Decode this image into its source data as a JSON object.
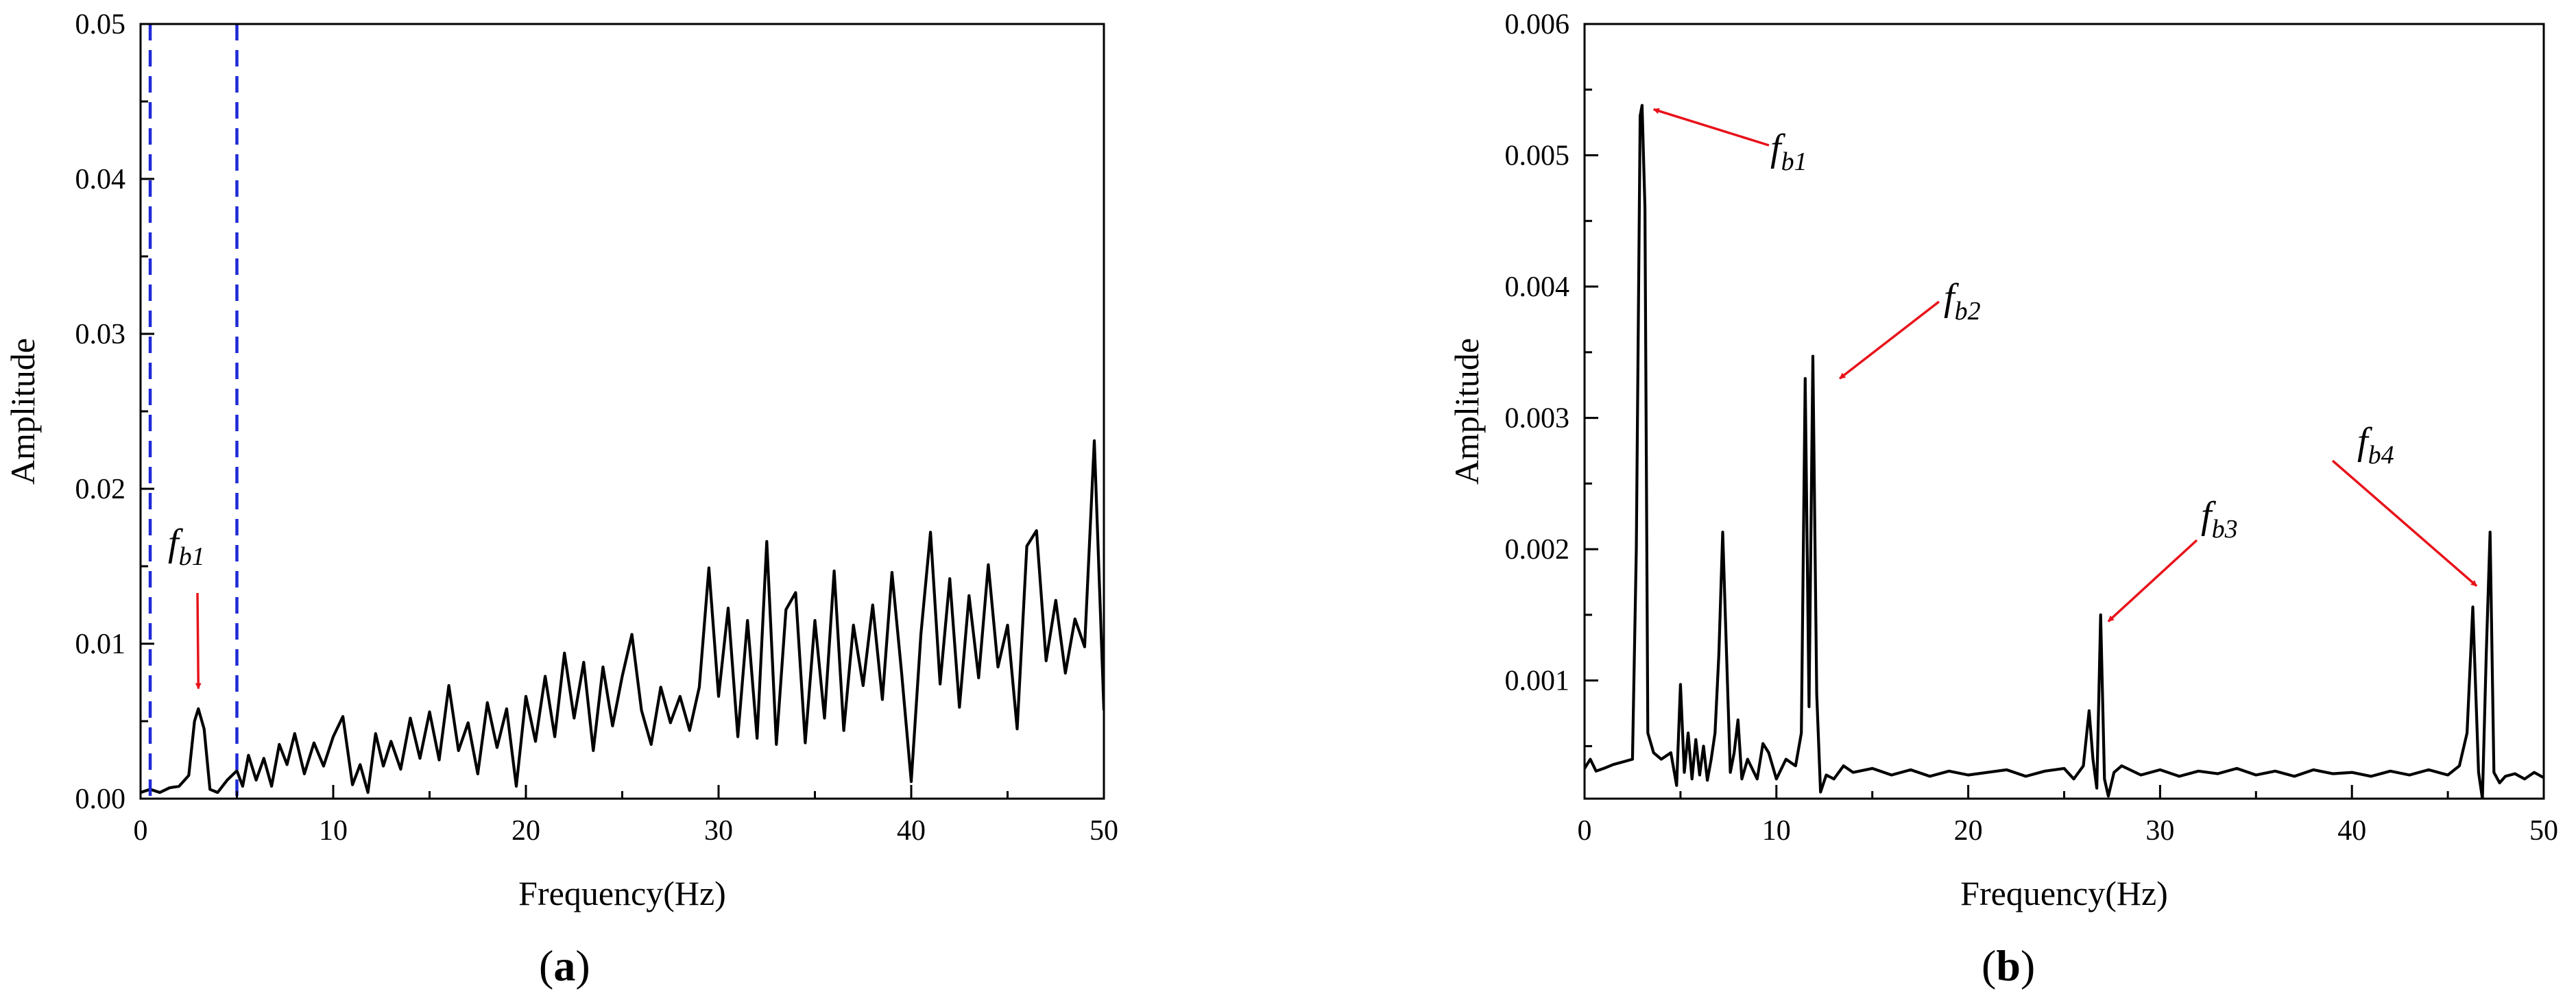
{
  "panels": {
    "a": {
      "letter": "a"
    },
    "b": {
      "letter": "b"
    }
  },
  "chart_data": [
    {
      "id": "a",
      "type": "line",
      "xlabel": "Frequency(Hz)",
      "ylabel": "Amplitude",
      "xlim": [
        0,
        50
      ],
      "ylim": [
        0,
        0.05
      ],
      "xticks": [
        0,
        10,
        20,
        30,
        40,
        50
      ],
      "xtick_labels": [
        "0",
        "10",
        "20",
        "30",
        "40",
        "50"
      ],
      "yticks": [
        0,
        0.01,
        0.02,
        0.03,
        0.04,
        0.05
      ],
      "ytick_labels": [
        "0.00",
        "0.01",
        "0.02",
        "0.03",
        "0.04",
        "0.05"
      ],
      "reference_lines": [
        {
          "x": 0.5,
          "style": "dashed",
          "color": "#1f2ad6"
        },
        {
          "x": 5,
          "style": "dashed",
          "color": "#1f2ad6"
        }
      ],
      "annotations": [
        {
          "label": "f",
          "sub": "b1",
          "arrow_to": [
            3.0,
            0.0071
          ]
        }
      ],
      "series": [
        {
          "color": "#000000",
          "points": [
            [
              0,
              0.0004
            ],
            [
              0.5,
              0.0006
            ],
            [
              1,
              0.0004
            ],
            [
              1.5,
              0.0007
            ],
            [
              2,
              0.0008
            ],
            [
              2.5,
              0.0015
            ],
            [
              2.8,
              0.005
            ],
            [
              3,
              0.0058
            ],
            [
              3.3,
              0.0045
            ],
            [
              3.6,
              0.0006
            ],
            [
              4,
              0.0004
            ],
            [
              4.5,
              0.0012
            ],
            [
              5,
              0.0018
            ],
            [
              5.3,
              0.0008
            ],
            [
              5.6,
              0.0028
            ],
            [
              6,
              0.0012
            ],
            [
              6.4,
              0.0026
            ],
            [
              6.8,
              0.0008
            ],
            [
              7.2,
              0.0035
            ],
            [
              7.6,
              0.0022
            ],
            [
              8,
              0.0042
            ],
            [
              8.5,
              0.0016
            ],
            [
              9,
              0.0036
            ],
            [
              9.5,
              0.0021
            ],
            [
              10,
              0.004
            ],
            [
              10.5,
              0.0053
            ],
            [
              11,
              0.0009
            ],
            [
              11.4,
              0.0022
            ],
            [
              11.8,
              0.0004
            ],
            [
              12.2,
              0.0042
            ],
            [
              12.6,
              0.0021
            ],
            [
              13,
              0.0037
            ],
            [
              13.5,
              0.0019
            ],
            [
              14,
              0.0052
            ],
            [
              14.5,
              0.0026
            ],
            [
              15,
              0.0056
            ],
            [
              15.5,
              0.0025
            ],
            [
              16,
              0.0073
            ],
            [
              16.5,
              0.0031
            ],
            [
              17,
              0.0049
            ],
            [
              17.5,
              0.0016
            ],
            [
              18,
              0.0062
            ],
            [
              18.5,
              0.0033
            ],
            [
              19,
              0.0058
            ],
            [
              19.5,
              0.0008
            ],
            [
              20,
              0.0066
            ],
            [
              20.5,
              0.0037
            ],
            [
              21,
              0.0079
            ],
            [
              21.5,
              0.004
            ],
            [
              22,
              0.0094
            ],
            [
              22.5,
              0.0052
            ],
            [
              23,
              0.0088
            ],
            [
              23.5,
              0.0031
            ],
            [
              24,
              0.0085
            ],
            [
              24.5,
              0.0047
            ],
            [
              25,
              0.0079
            ],
            [
              25.5,
              0.0106
            ],
            [
              26,
              0.0057
            ],
            [
              26.5,
              0.0035
            ],
            [
              27,
              0.0072
            ],
            [
              27.5,
              0.0049
            ],
            [
              28,
              0.0066
            ],
            [
              28.5,
              0.0044
            ],
            [
              29,
              0.0072
            ],
            [
              29.5,
              0.0149
            ],
            [
              30,
              0.0066
            ],
            [
              30.5,
              0.0123
            ],
            [
              31,
              0.004
            ],
            [
              31.5,
              0.0115
            ],
            [
              32,
              0.0039
            ],
            [
              32.5,
              0.0166
            ],
            [
              33,
              0.0035
            ],
            [
              33.5,
              0.0122
            ],
            [
              34,
              0.0133
            ],
            [
              34.5,
              0.0036
            ],
            [
              35,
              0.0115
            ],
            [
              35.5,
              0.0052
            ],
            [
              36,
              0.0147
            ],
            [
              36.5,
              0.0044
            ],
            [
              37,
              0.0112
            ],
            [
              37.5,
              0.0073
            ],
            [
              38,
              0.0125
            ],
            [
              38.5,
              0.0064
            ],
            [
              39,
              0.0146
            ],
            [
              39.5,
              0.0081
            ],
            [
              40,
              0.0011
            ],
            [
              40.5,
              0.0106
            ],
            [
              41,
              0.0172
            ],
            [
              41.5,
              0.0074
            ],
            [
              42,
              0.0142
            ],
            [
              42.5,
              0.0059
            ],
            [
              43,
              0.0131
            ],
            [
              43.5,
              0.0078
            ],
            [
              44,
              0.0151
            ],
            [
              44.5,
              0.0085
            ],
            [
              45,
              0.0112
            ],
            [
              45.5,
              0.0045
            ],
            [
              46,
              0.0163
            ],
            [
              46.5,
              0.0173
            ],
            [
              47,
              0.0089
            ],
            [
              47.5,
              0.0128
            ],
            [
              48,
              0.0081
            ],
            [
              48.5,
              0.0116
            ],
            [
              49,
              0.0098
            ],
            [
              49.5,
              0.0231
            ],
            [
              50,
              0.0057
            ]
          ]
        }
      ]
    },
    {
      "id": "b",
      "type": "line",
      "xlabel": "Frequency(Hz)",
      "ylabel": "Amplitude",
      "xlim": [
        0,
        50
      ],
      "ylim": [
        0.0001,
        0.006
      ],
      "xticks": [
        0,
        10,
        20,
        30,
        40,
        50
      ],
      "xtick_labels": [
        "0",
        "10",
        "20",
        "30",
        "40",
        "50"
      ],
      "yticks": [
        0.001,
        0.002,
        0.003,
        0.004,
        0.005,
        0.006
      ],
      "ytick_labels": [
        "0.001",
        "0.002",
        "0.003",
        "0.004",
        "0.005",
        "0.006"
      ],
      "annotations": [
        {
          "label": "f",
          "sub": "b1",
          "arrow_to": [
            3.6,
            0.00535
          ]
        },
        {
          "label": "f",
          "sub": "b2",
          "arrow_to": [
            13.3,
            0.0033
          ]
        },
        {
          "label": "f",
          "sub": "b3",
          "arrow_to": [
            27.3,
            0.00145
          ]
        },
        {
          "label": "f",
          "sub": "b4",
          "arrow_to": [
            46.5,
            0.00172
          ]
        }
      ],
      "series": [
        {
          "color": "#000000",
          "points": [
            [
              0,
              0.00033
            ],
            [
              0.3,
              0.0004
            ],
            [
              0.6,
              0.00031
            ],
            [
              1,
              0.00033
            ],
            [
              1.5,
              0.00036
            ],
            [
              2,
              0.00038
            ],
            [
              2.5,
              0.0004
            ],
            [
              2.7,
              0.002
            ],
            [
              2.9,
              0.0053
            ],
            [
              3.0,
              0.00538
            ],
            [
              3.15,
              0.0046
            ],
            [
              3.3,
              0.0006
            ],
            [
              3.6,
              0.00045
            ],
            [
              4,
              0.0004
            ],
            [
              4.5,
              0.00045
            ],
            [
              4.8,
              0.0002
            ],
            [
              5.0,
              0.00097
            ],
            [
              5.2,
              0.0003
            ],
            [
              5.4,
              0.0006
            ],
            [
              5.6,
              0.00025
            ],
            [
              5.8,
              0.00055
            ],
            [
              6.0,
              0.00028
            ],
            [
              6.2,
              0.0005
            ],
            [
              6.4,
              0.00024
            ],
            [
              6.6,
              0.0004
            ],
            [
              6.8,
              0.0006
            ],
            [
              7.0,
              0.0012
            ],
            [
              7.2,
              0.00213
            ],
            [
              7.4,
              0.0012
            ],
            [
              7.6,
              0.0003
            ],
            [
              7.8,
              0.00045
            ],
            [
              8.0,
              0.0007
            ],
            [
              8.2,
              0.00025
            ],
            [
              8.5,
              0.0004
            ],
            [
              9.0,
              0.00025
            ],
            [
              9.3,
              0.00052
            ],
            [
              9.6,
              0.00045
            ],
            [
              10.0,
              0.00025
            ],
            [
              10.5,
              0.0004
            ],
            [
              11.0,
              0.00035
            ],
            [
              11.3,
              0.0006
            ],
            [
              11.5,
              0.0033
            ],
            [
              11.7,
              0.0008
            ],
            [
              11.9,
              0.00347
            ],
            [
              12.1,
              0.0009
            ],
            [
              12.3,
              0.00015
            ],
            [
              12.6,
              0.00028
            ],
            [
              13.0,
              0.00025
            ],
            [
              13.5,
              0.00035
            ],
            [
              14,
              0.0003
            ],
            [
              15,
              0.00033
            ],
            [
              16,
              0.00028
            ],
            [
              17,
              0.00032
            ],
            [
              18,
              0.00027
            ],
            [
              19,
              0.00031
            ],
            [
              20,
              0.00028
            ],
            [
              21,
              0.0003
            ],
            [
              22,
              0.00032
            ],
            [
              23,
              0.00027
            ],
            [
              24,
              0.00031
            ],
            [
              25,
              0.00033
            ],
            [
              25.5,
              0.00025
            ],
            [
              26.0,
              0.00035
            ],
            [
              26.3,
              0.00077
            ],
            [
              26.5,
              0.0004
            ],
            [
              26.7,
              0.00018
            ],
            [
              26.9,
              0.0015
            ],
            [
              27.1,
              0.00025
            ],
            [
              27.3,
              0.00012
            ],
            [
              27.6,
              0.0003
            ],
            [
              28,
              0.00035
            ],
            [
              29,
              0.00028
            ],
            [
              30,
              0.00032
            ],
            [
              31,
              0.00027
            ],
            [
              32,
              0.00031
            ],
            [
              33,
              0.00029
            ],
            [
              34,
              0.00033
            ],
            [
              35,
              0.00028
            ],
            [
              36,
              0.00031
            ],
            [
              37,
              0.00027
            ],
            [
              38,
              0.00032
            ],
            [
              39,
              0.00029
            ],
            [
              40,
              0.0003
            ],
            [
              41,
              0.00027
            ],
            [
              42,
              0.00031
            ],
            [
              43,
              0.00028
            ],
            [
              44,
              0.00032
            ],
            [
              45,
              0.00028
            ],
            [
              45.6,
              0.00035
            ],
            [
              46.0,
              0.0006
            ],
            [
              46.3,
              0.00156
            ],
            [
              46.6,
              0.0003
            ],
            [
              46.8,
              0.0001
            ],
            [
              47.0,
              0.0012
            ],
            [
              47.2,
              0.00213
            ],
            [
              47.4,
              0.0003
            ],
            [
              47.7,
              0.00022
            ],
            [
              48,
              0.00027
            ],
            [
              48.5,
              0.00029
            ],
            [
              49,
              0.00025
            ],
            [
              49.5,
              0.0003
            ],
            [
              50,
              0.00026
            ]
          ]
        }
      ]
    }
  ]
}
